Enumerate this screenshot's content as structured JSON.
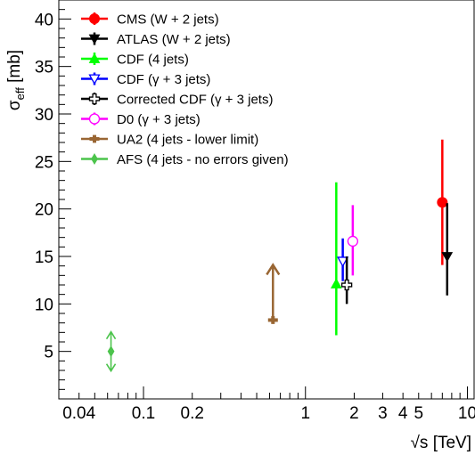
{
  "chart_data": {
    "type": "scatter",
    "title": "",
    "xlabel": "√s [TeV]",
    "ylabel": "σ_eff [mb]",
    "ylabel_main": "σ",
    "ylabel_sub": "eff",
    "ylabel_unit": " [mb]",
    "x_scale": "log",
    "xlim": [
      0.03,
      11
    ],
    "ylim": [
      0,
      42
    ],
    "x_ticks": [
      {
        "value": 0.04,
        "label": "0.04"
      },
      {
        "value": 0.1,
        "label": "0.1"
      },
      {
        "value": 0.2,
        "label": "0.2"
      },
      {
        "value": 1,
        "label": "1"
      },
      {
        "value": 2,
        "label": "2"
      },
      {
        "value": 3,
        "label": "3"
      },
      {
        "value": 4,
        "label": "4"
      },
      {
        "value": 5,
        "label": "5"
      },
      {
        "value": 10,
        "label": "10"
      }
    ],
    "y_ticks": [
      {
        "value": 5,
        "label": "5"
      },
      {
        "value": 10,
        "label": "10"
      },
      {
        "value": 15,
        "label": "15"
      },
      {
        "value": 20,
        "label": "20"
      },
      {
        "value": 25,
        "label": "25"
      },
      {
        "value": 30,
        "label": "30"
      },
      {
        "value": 35,
        "label": "35"
      },
      {
        "value": 40,
        "label": "40"
      }
    ],
    "grid": false,
    "legend_position": "top-left",
    "series": [
      {
        "name": "CMS (W + 2 jets)",
        "color": "#ff0000",
        "marker": "circle-filled",
        "points": [
          {
            "x": 7,
            "y": 20.7,
            "y_low": 14.1,
            "y_high": 27.3
          }
        ]
      },
      {
        "name": "ATLAS (W + 2 jets)",
        "color": "#000000",
        "marker": "triangle-down-filled",
        "points": [
          {
            "x": 7.5,
            "y": 15.0,
            "y_low": 10.9,
            "y_high": 20.6
          }
        ]
      },
      {
        "name": "CDF (4 jets)",
        "color": "#00ff00",
        "marker": "triangle-up-filled",
        "points": [
          {
            "x": 1.55,
            "y": 12.1,
            "y_low": 6.7,
            "y_high": 22.8
          }
        ]
      },
      {
        "name": "CDF (γ + 3 jets)",
        "color": "#0000ff",
        "marker": "triangle-down-open",
        "points": [
          {
            "x": 1.7,
            "y": 14.5,
            "y_low": 12.4,
            "y_high": 16.9
          }
        ]
      },
      {
        "name": "Corrected CDF (γ + 3 jets)",
        "color": "#000000",
        "marker": "cross-open",
        "points": [
          {
            "x": 1.8,
            "y": 12.0,
            "y_low": 10.0,
            "y_high": 15.0
          }
        ]
      },
      {
        "name": "D0 (γ + 3 jets)",
        "color": "#ff00ff",
        "marker": "circle-open",
        "points": [
          {
            "x": 1.96,
            "y": 16.6,
            "y_low": 13.0,
            "y_high": 20.4
          }
        ]
      },
      {
        "name": "UA2 (4 jets - lower limit)",
        "color": "#996633",
        "marker": "plus-filled",
        "points": [
          {
            "x": 0.63,
            "y": 8.3,
            "lower_limit": true
          }
        ]
      },
      {
        "name": "AFS (4 jets - no errors given)",
        "color": "#4cc44c",
        "marker": "diamond-filled",
        "points": [
          {
            "x": 0.063,
            "y": 5.0,
            "double_arrow": true
          }
        ]
      }
    ]
  }
}
